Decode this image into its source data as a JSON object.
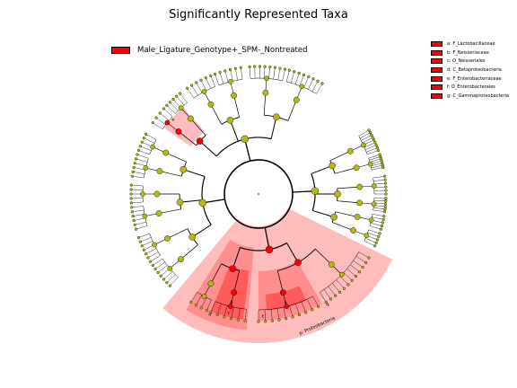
{
  "title": "Significantly Represented Taxa",
  "legend": {
    "label": "Male_Ligature_Genotype+_SPM-_Nontreated",
    "color": "#ff0000"
  },
  "taxa_keys": [
    {
      "letter": "a",
      "label": "a: F_Lactobacillaceae"
    },
    {
      "letter": "b",
      "label": "b: F_Neisseriaceae"
    },
    {
      "letter": "c",
      "label": "c: O_Neisseriales"
    },
    {
      "letter": "d",
      "label": "d: C_Betaproteobacteria"
    },
    {
      "letter": "e",
      "label": "e: F_Enterobacteriaceae"
    },
    {
      "letter": "f",
      "label": "f: O_Enterobacterales"
    },
    {
      "letter": "g",
      "label": "g: C_Gammaproteobacteria"
    }
  ],
  "ring_labels": {
    "phylum": "p: Proteobacteria",
    "g": "g",
    "d": "d",
    "f": "f",
    "c": "c",
    "e": "e",
    "b": "b",
    "a": "a"
  },
  "colors": {
    "enriched": "#ff0000",
    "neutral_node": "#b5b80f",
    "highlight_light": "#ffbcbc",
    "highlight_mid": "#ff8e8e",
    "highlight_dark": "#ff5b5b"
  }
}
